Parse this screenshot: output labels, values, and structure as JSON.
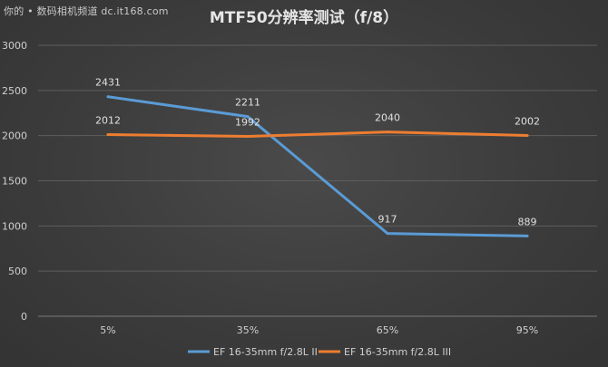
{
  "watermark": "你的 • 数码相机频道 dc.it168.com",
  "colors": {
    "series1": "#5b9bd5",
    "series2": "#ed7d31",
    "grid": "#5e5e5e",
    "axis": "#7a7a7a"
  },
  "chart_data": {
    "type": "line",
    "title": "MTF50分辨率测试（f/8）",
    "xlabel": "",
    "ylabel": "",
    "categories": [
      "5%",
      "35%",
      "65%",
      "95%"
    ],
    "ylim": [
      0,
      3000
    ],
    "yticks": [
      0,
      500,
      1000,
      1500,
      2000,
      2500,
      3000
    ],
    "grid": true,
    "legend_position": "bottom",
    "series": [
      {
        "name": "EF 16-35mm f/2.8L II",
        "values": [
          2431,
          2211,
          917,
          889
        ],
        "color": "#5b9bd5"
      },
      {
        "name": "EF 16-35mm f/2.8L III",
        "values": [
          2012,
          1992,
          2040,
          2002
        ],
        "color": "#ed7d31"
      }
    ]
  }
}
